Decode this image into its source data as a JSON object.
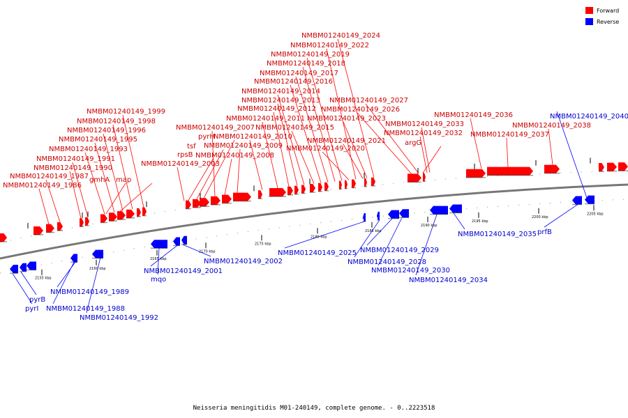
{
  "title": "Neisseria meningitidis M01-240149, complete genome. - 0..2223518",
  "legend": [
    {
      "label": "Forward",
      "color": "#ff0000"
    },
    {
      "label": "Reverse",
      "color": "#0000ff"
    }
  ],
  "ticks": [
    "2155 kbp",
    "2160 kbp",
    "2165 kbp",
    "2170 kbp",
    "2175 kbp",
    "2180 kbp",
    "2185 kbp",
    "2190 kbp",
    "2195 kbp",
    "2200 kbp",
    "2205 kbp"
  ],
  "forward_labels": [
    "NMBM01240149_1986",
    "NMBM01240149_1987",
    "NMBM01240149_1990",
    "NMBM01240149_1991",
    "NMBM01240149_1993",
    "NMBM01240149_1995",
    "NMBM01240149_1996",
    "NMBM01240149_1998",
    "NMBM01240149_1999",
    "gmhA",
    "map",
    "rpsB",
    "tsf",
    "pyrH",
    "NMBM01240149_2003",
    "NMBM01240149_2007",
    "NMBM01240149_2008",
    "NMBM01240149_2009",
    "NMBM01240149_2010",
    "NMBM01240149_2011",
    "NMBM01240149_2012",
    "NMBM01240149_2013",
    "NMBM01240149_2014",
    "NMBM01240149_2015",
    "NMBM01240149_2016",
    "NMBM01240149_2017",
    "NMBM01240149_2018",
    "NMBM01240149_2019",
    "NMBM01240149_2020",
    "NMBM01240149_2021",
    "NMBM01240149_2022",
    "NMBM01240149_2023",
    "NMBM01240149_2024",
    "NMBM01240149_2026",
    "NMBM01240149_2027",
    "argG",
    "NMBM01240149_2032",
    "NMBM01240149_2033",
    "NMBM01240149_2036",
    "NMBM01240149_2037",
    "NMBM01240149_2038"
  ],
  "reverse_labels": [
    "pyrB",
    "pyrI",
    "NMBM01240149_1988",
    "NMBM01240149_1989",
    "NMBM01240149_1992",
    "mqo",
    "NMBM01240149_2001",
    "NMBM01240149_2002",
    "NMBM01240149_2025",
    "NMBM01240149_2028",
    "NMBM01240149_2029",
    "NMBM01240149_2030",
    "NMBM01240149_2034",
    "NMBM01240149_2035",
    "prfB",
    "NMBM01240149_2040"
  ]
}
